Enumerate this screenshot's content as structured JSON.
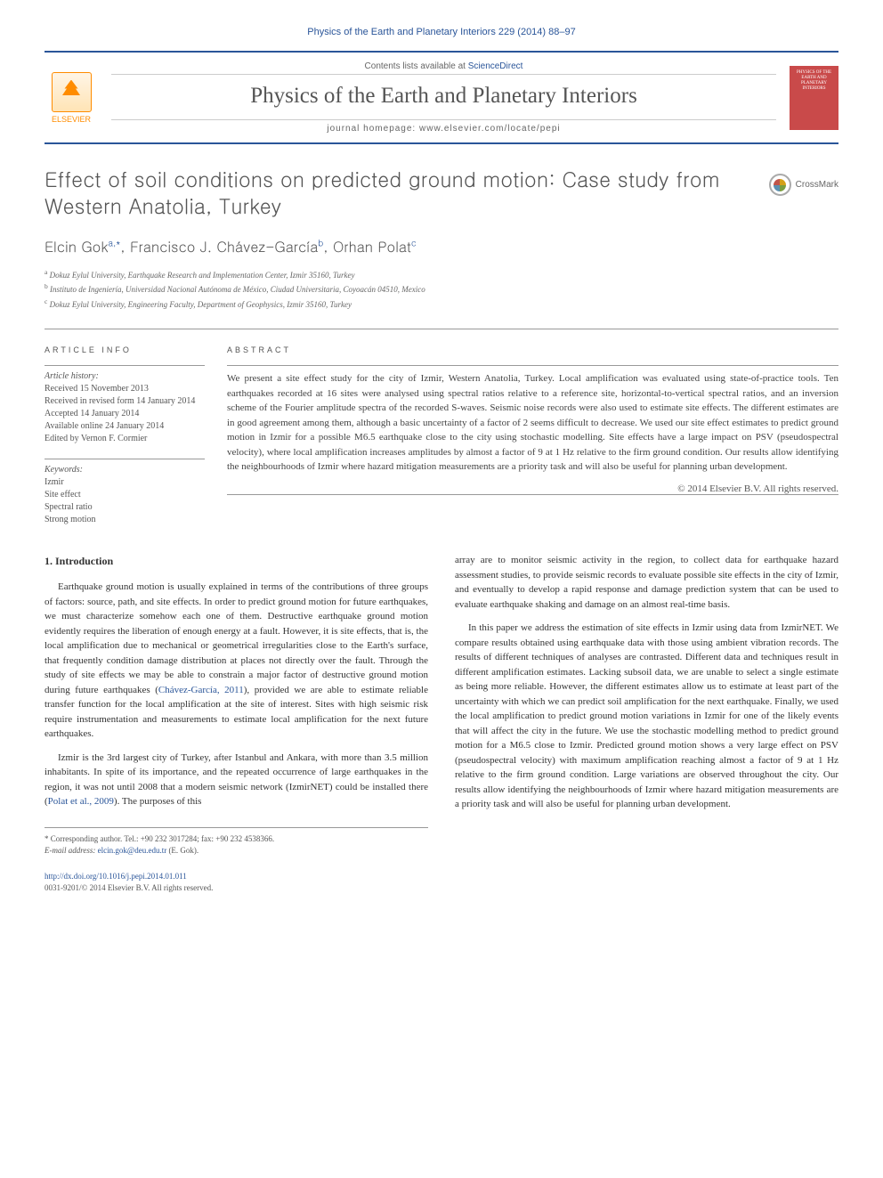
{
  "header": {
    "citation": "Physics of the Earth and Planetary Interiors 229 (2014) 88–97",
    "contents_label": "Contents lists available at",
    "contents_link": "ScienceDirect",
    "journal_title": "Physics of the Earth and Planetary Interiors",
    "homepage_label": "journal homepage:",
    "homepage_url": "www.elsevier.com/locate/pepi",
    "elsevier_label": "ELSEVIER",
    "cover_text": "PHYSICS OF THE EARTH AND PLANETARY INTERIORS"
  },
  "article": {
    "title": "Effect of soil conditions on predicted ground motion: Case study from Western Anatolia, Turkey",
    "crossmark": "CrossMark",
    "authors_html": "Elcin Gok",
    "author1": "Elcin Gok",
    "author1_sup": "a,*",
    "author2": "Francisco J. Chávez-García",
    "author2_sup": "b",
    "author3": "Orhan Polat",
    "author3_sup": "c",
    "affiliations": [
      {
        "sup": "a",
        "text": "Dokuz Eylul University, Earthquake Research and Implementation Center, Izmir 35160, Turkey"
      },
      {
        "sup": "b",
        "text": "Instituto de Ingeniería, Universidad Nacional Autónoma de México, Ciudad Universitaria, Coyoacán 04510, Mexico"
      },
      {
        "sup": "c",
        "text": "Dokuz Eylul University, Engineering Faculty, Department of Geophysics, Izmir 35160, Turkey"
      }
    ]
  },
  "info": {
    "heading": "ARTICLE INFO",
    "history_title": "Article history:",
    "history": [
      "Received 15 November 2013",
      "Received in revised form 14 January 2014",
      "Accepted 14 January 2014",
      "Available online 24 January 2014",
      "Edited by Vernon F. Cormier"
    ],
    "keywords_title": "Keywords:",
    "keywords": [
      "Izmir",
      "Site effect",
      "Spectral ratio",
      "Strong motion"
    ]
  },
  "abstract": {
    "heading": "ABSTRACT",
    "text": "We present a site effect study for the city of Izmir, Western Anatolia, Turkey. Local amplification was evaluated using state-of-practice tools. Ten earthquakes recorded at 16 sites were analysed using spectral ratios relative to a reference site, horizontal-to-vertical spectral ratios, and an inversion scheme of the Fourier amplitude spectra of the recorded S-waves. Seismic noise records were also used to estimate site effects. The different estimates are in good agreement among them, although a basic uncertainty of a factor of 2 seems difficult to decrease. We used our site effect estimates to predict ground motion in Izmir for a possible M6.5 earthquake close to the city using stochastic modelling. Site effects have a large impact on PSV (pseudospectral velocity), where local amplification increases amplitudes by almost a factor of 9 at 1 Hz relative to the firm ground condition. Our results allow identifying the neighbourhoods of Izmir where hazard mitigation measurements are a priority task and will also be useful for planning urban development.",
    "copyright": "© 2014 Elsevier B.V. All rights reserved."
  },
  "intro": {
    "heading": "1. Introduction",
    "p1": "Earthquake ground motion is usually explained in terms of the contributions of three groups of factors: source, path, and site effects. In order to predict ground motion for future earthquakes, we must characterize somehow each one of them. Destructive earthquake ground motion evidently requires the liberation of enough energy at a fault. However, it is site effects, that is, the local amplification due to mechanical or geometrical irregularities close to the Earth's surface, that frequently condition damage distribution at places not directly over the fault. Through the study of site effects we may be able to constrain a major factor of destructive ground motion during future earthquakes (",
    "p1_cite": "Chávez-García, 2011",
    "p1_end": "), provided we are able to estimate reliable transfer function for the local amplification at the site of interest. Sites with high seismic risk require instrumentation and measurements to estimate local amplification for the next future earthquakes.",
    "p2": "Izmir is the 3rd largest city of Turkey, after Istanbul and Ankara, with more than 3.5 million inhabitants. In spite of its importance, and the repeated occurrence of large earthquakes in the region, it was not until 2008 that a modern seismic network (IzmirNET) could be installed there (",
    "p2_cite": "Polat et al., 2009",
    "p2_end": "). The purposes of this",
    "p3": "array are to monitor seismic activity in the region, to collect data for earthquake hazard assessment studies, to provide seismic records to evaluate possible site effects in the city of Izmir, and eventually to develop a rapid response and damage prediction system that can be used to evaluate earthquake shaking and damage on an almost real-time basis.",
    "p4": "In this paper we address the estimation of site effects in Izmir using data from IzmirNET. We compare results obtained using earthquake data with those using ambient vibration records. The results of different techniques of analyses are contrasted. Different data and techniques result in different amplification estimates. Lacking subsoil data, we are unable to select a single estimate as being more reliable. However, the different estimates allow us to estimate at least part of the uncertainty with which we can predict soil amplification for the next earthquake. Finally, we used the local amplification to predict ground motion variations in Izmir for one of the likely events that will affect the city in the future. We use the stochastic modelling method to predict ground motion for a M6.5 close to Izmir. Predicted ground motion shows a very large effect on PSV (pseudospectral velocity) with maximum amplification reaching almost a factor of 9 at 1 Hz relative to the firm ground condition. Large variations are observed throughout the city. Our results allow identifying the neighbourhoods of Izmir where hazard mitigation measurements are a priority task and will also be useful for planning urban development."
  },
  "footer": {
    "corr_label": "* Corresponding author. Tel.: +90 232 3017284; fax: +90 232 4538366.",
    "email_label": "E-mail address:",
    "email": "elcin.gok@deu.edu.tr",
    "email_name": "(E. Gok).",
    "doi": "http://dx.doi.org/10.1016/j.pepi.2014.01.011",
    "issn_copyright": "0031-9201/© 2014 Elsevier B.V. All rights reserved."
  },
  "colors": {
    "link": "#2a5599",
    "elsevier": "#ff8c00",
    "cover": "#c94a4a",
    "text": "#333333",
    "muted": "#555555",
    "border": "#999999"
  }
}
